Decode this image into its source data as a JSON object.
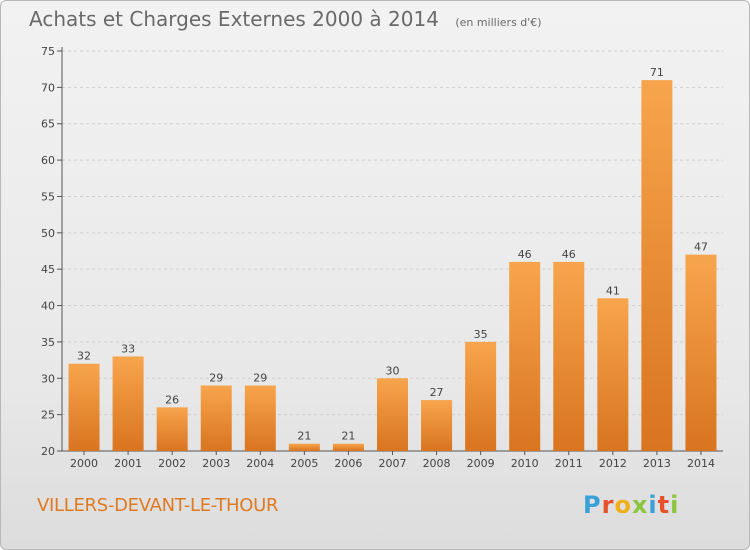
{
  "header": {
    "title": "Achats et Charges Externes 2000 à 2014",
    "subtitle": "(en milliers d'€)"
  },
  "footer": {
    "commune": "VILLERS-DEVANT-LE-THOUR",
    "logo_text": "Proxiti"
  },
  "colors": {
    "bar_light": "#f7a54d",
    "bar_dark": "#d9741f",
    "commune_text": "#e07a20",
    "grid": "#cfcfcf"
  },
  "chart_data": {
    "type": "bar",
    "title": "Achats et Charges Externes 2000 à 2014",
    "subtitle": "(en milliers d'€)",
    "xlabel": "",
    "ylabel": "",
    "ylim": [
      20,
      75
    ],
    "yticks": [
      20,
      25,
      30,
      35,
      40,
      45,
      50,
      55,
      60,
      65,
      70,
      75
    ],
    "categories": [
      "2000",
      "2001",
      "2002",
      "2003",
      "2004",
      "2005",
      "2006",
      "2007",
      "2008",
      "2009",
      "2010",
      "2011",
      "2012",
      "2013",
      "2014"
    ],
    "values": [
      32,
      33,
      26,
      29,
      29,
      21,
      21,
      30,
      27,
      35,
      46,
      46,
      41,
      71,
      47
    ],
    "grid": true,
    "legend": "none"
  }
}
